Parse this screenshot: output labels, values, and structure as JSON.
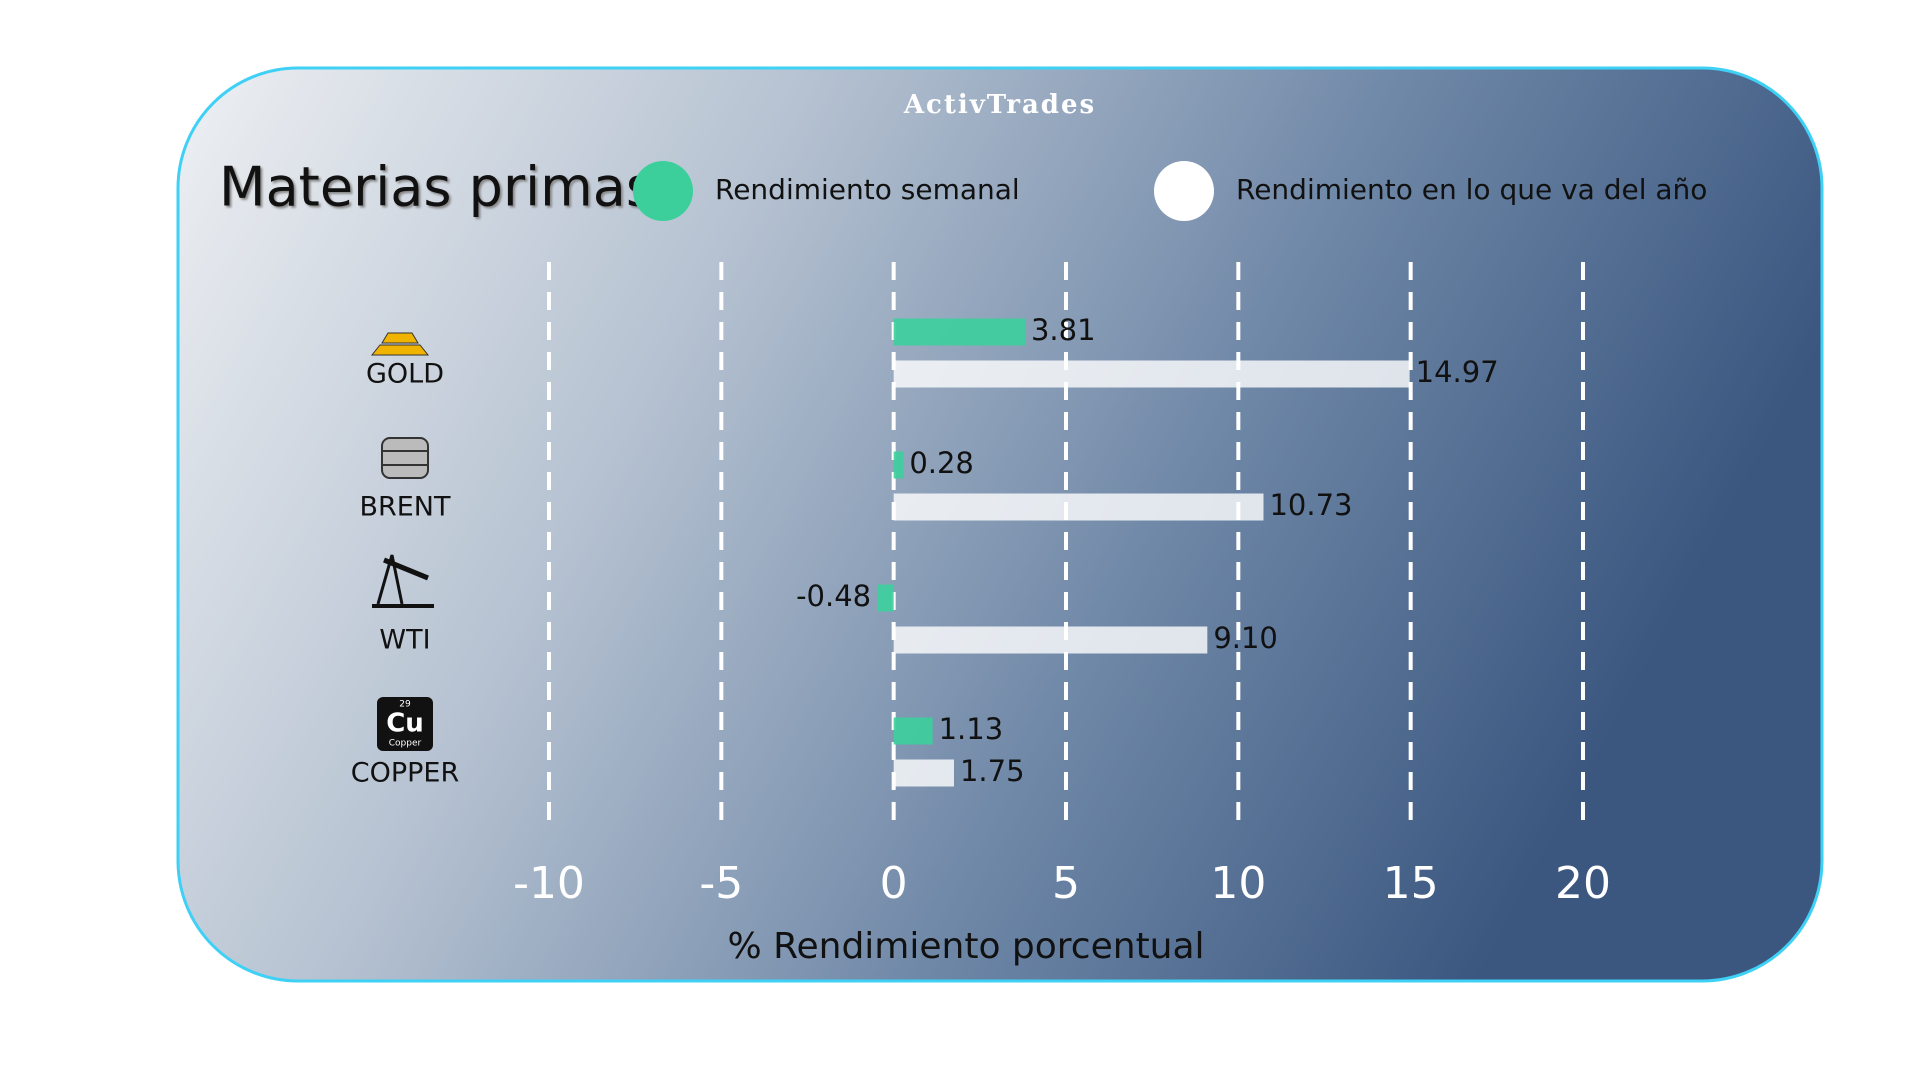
{
  "brand": "ActivTrades",
  "copper_icon": {
    "number": "29",
    "symbol": "Cu",
    "name": "Copper"
  },
  "chart_data": {
    "type": "bar",
    "orientation": "horizontal",
    "title": "Materias primas",
    "x_label": "% Rendimiento porcentual",
    "categories": [
      "GOLD",
      "BRENT",
      "WTI",
      "COPPER"
    ],
    "series": [
      {
        "name": "Rendimiento semanal",
        "color": "#3ccf9c",
        "values": [
          3.81,
          0.28,
          -0.48,
          1.13
        ]
      },
      {
        "name": "Rendimiento en lo que va del año",
        "color": "#ffffff",
        "values": [
          14.97,
          10.73,
          9.1,
          1.75
        ],
        "value_labels": [
          "14.97",
          "10.73",
          "9.10",
          "1.75"
        ]
      }
    ],
    "xlim": [
      -10,
      20
    ],
    "xticks": [
      -10,
      -5,
      0,
      5,
      10,
      15,
      20
    ],
    "grid": true
  }
}
